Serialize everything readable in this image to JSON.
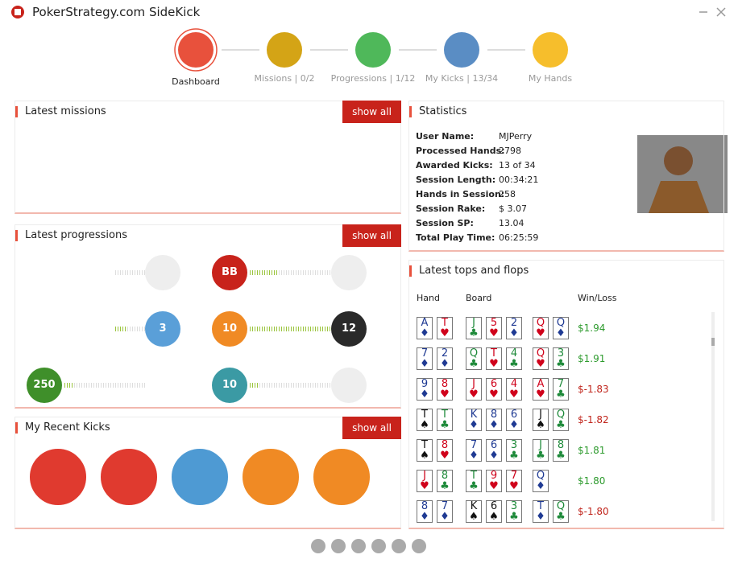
{
  "window": {
    "title": "PokerStrategy.com SideKick"
  },
  "nav": {
    "steps": [
      {
        "label": "Dashboard",
        "color": "#e8513c"
      },
      {
        "label": "Missions | 0/2",
        "color": "#d4a416"
      },
      {
        "label": "Progressions | 1/12",
        "color": "#4fb85a"
      },
      {
        "label": "My Kicks | 13/34",
        "color": "#5a8dc4"
      },
      {
        "label": "My Hands",
        "color": "#f6be2c"
      }
    ]
  },
  "missions": {
    "title": "Latest missions",
    "button": "show all"
  },
  "progressions": {
    "title": "Latest progressions",
    "button": "show all",
    "chips": [
      "BB",
      "3",
      "10",
      "12",
      "250",
      "10"
    ]
  },
  "kicks": {
    "title": "My Recent Kicks",
    "button": "show all"
  },
  "statistics": {
    "title": "Statistics",
    "rows": [
      [
        "User Name:",
        "MJPerry"
      ],
      [
        "Processed Hands:",
        "2798"
      ],
      [
        "Awarded Kicks:",
        "13 of 34"
      ],
      [
        "Session Length:",
        "00:34:21"
      ],
      [
        "Hands in Session:",
        "258"
      ],
      [
        "Session Rake:",
        "$ 3.07"
      ],
      [
        "Session SP:",
        "13.04"
      ],
      [
        "Total Play Time:",
        "06:25:59"
      ]
    ]
  },
  "tops": {
    "title": "Latest tops and flops",
    "columns": [
      "Hand",
      "Board",
      "Win/Loss"
    ],
    "suit_colors": {
      "♥": "#d0021b",
      "♦": "#1f3a93",
      "♣": "#1e8a3a",
      "♠": "#111111"
    },
    "rows": [
      {
        "hand": [
          [
            "A",
            "♦"
          ],
          [
            "T",
            "♥"
          ]
        ],
        "board": [
          [
            "J",
            "♣"
          ],
          [
            "5",
            "♥"
          ],
          [
            "2",
            "♦"
          ],
          [
            "Q",
            "♥"
          ],
          [
            "Q",
            "♦"
          ]
        ],
        "result": "$1.94",
        "color": "#2e9b2e"
      },
      {
        "hand": [
          [
            "7",
            "♦"
          ],
          [
            "2",
            "♦"
          ]
        ],
        "board": [
          [
            "Q",
            "♣"
          ],
          [
            "T",
            "♥"
          ],
          [
            "4",
            "♣"
          ],
          [
            "Q",
            "♥"
          ],
          [
            "3",
            "♣"
          ]
        ],
        "result": "$1.91",
        "color": "#2e9b2e"
      },
      {
        "hand": [
          [
            "9",
            "♦"
          ],
          [
            "8",
            "♥"
          ]
        ],
        "board": [
          [
            "J",
            "♥"
          ],
          [
            "6",
            "♥"
          ],
          [
            "4",
            "♥"
          ],
          [
            "A",
            "♥"
          ],
          [
            "7",
            "♣"
          ]
        ],
        "result": "$-1.83",
        "color": "#c0241b"
      },
      {
        "hand": [
          [
            "T",
            "♠"
          ],
          [
            "T",
            "♣"
          ]
        ],
        "board": [
          [
            "K",
            "♦"
          ],
          [
            "8",
            "♦"
          ],
          [
            "6",
            "♦"
          ],
          [
            "J",
            "♠"
          ],
          [
            "Q",
            "♣"
          ]
        ],
        "result": "$-1.82",
        "color": "#c0241b"
      },
      {
        "hand": [
          [
            "T",
            "♠"
          ],
          [
            "8",
            "♥"
          ]
        ],
        "board": [
          [
            "7",
            "♦"
          ],
          [
            "6",
            "♦"
          ],
          [
            "3",
            "♣"
          ],
          [
            "J",
            "♣"
          ],
          [
            "8",
            "♣"
          ]
        ],
        "result": "$1.81",
        "color": "#2e9b2e"
      },
      {
        "hand": [
          [
            "J",
            "♥"
          ],
          [
            "8",
            "♣"
          ]
        ],
        "board": [
          [
            "T",
            "♣"
          ],
          [
            "9",
            "♥"
          ],
          [
            "7",
            "♥"
          ],
          [
            "Q",
            "♦"
          ]
        ],
        "result": "$1.80",
        "color": "#2e9b2e"
      },
      {
        "hand": [
          [
            "8",
            "♦"
          ],
          [
            "7",
            "♦"
          ]
        ],
        "board": [
          [
            "K",
            "♠"
          ],
          [
            "6",
            "♠"
          ],
          [
            "3",
            "♣"
          ],
          [
            "T",
            "♦"
          ],
          [
            "Q",
            "♣"
          ]
        ],
        "result": "$-1.80",
        "color": "#c0241b"
      }
    ]
  }
}
